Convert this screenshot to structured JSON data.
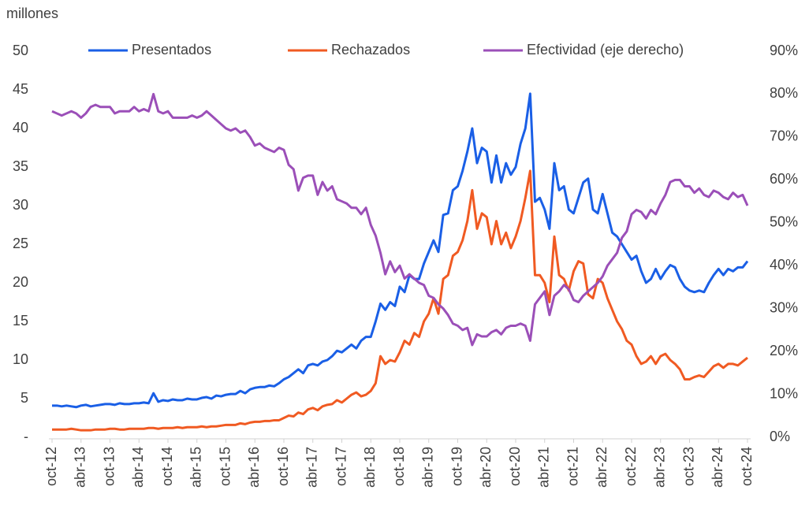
{
  "chart_data": {
    "type": "line",
    "y_label": "millones",
    "categories": [
      "oct-12",
      null,
      null,
      null,
      null,
      null,
      "abr-13",
      null,
      null,
      null,
      null,
      null,
      "oct-13",
      null,
      null,
      null,
      null,
      null,
      "abr-14",
      null,
      null,
      null,
      null,
      null,
      "oct-14",
      null,
      null,
      null,
      null,
      null,
      "abr-15",
      null,
      null,
      null,
      null,
      null,
      "oct-15",
      null,
      null,
      null,
      null,
      null,
      "abr-16",
      null,
      null,
      null,
      null,
      null,
      "oct-16",
      null,
      null,
      null,
      null,
      null,
      "abr-17",
      null,
      null,
      null,
      null,
      null,
      "oct-17",
      null,
      null,
      null,
      null,
      null,
      "abr-18",
      null,
      null,
      null,
      null,
      null,
      "oct-18",
      null,
      null,
      null,
      null,
      null,
      "abr-19",
      null,
      null,
      null,
      null,
      null,
      "oct-19",
      null,
      null,
      null,
      null,
      null,
      "abr-20",
      null,
      null,
      null,
      null,
      null,
      "oct-20",
      null,
      null,
      null,
      null,
      null,
      "abr-21",
      null,
      null,
      null,
      null,
      null,
      "oct-21",
      null,
      null,
      null,
      null,
      null,
      "abr-22",
      null,
      null,
      null,
      null,
      null,
      "oct-22",
      null,
      null,
      null,
      null,
      null,
      "abr-23",
      null,
      null,
      null,
      null,
      null,
      "oct-23",
      null,
      null,
      null,
      null,
      null,
      "abr-24",
      null,
      null,
      null,
      null,
      null,
      "oct-24"
    ],
    "series": [
      {
        "name": "Presentados",
        "color": "#1a5fe6",
        "values": [
          4.1,
          4.1,
          4.0,
          4.1,
          4.0,
          3.9,
          4.1,
          4.2,
          4.0,
          4.1,
          4.2,
          4.3,
          4.3,
          4.2,
          4.4,
          4.3,
          4.3,
          4.4,
          4.4,
          4.5,
          4.4,
          5.7,
          4.6,
          4.8,
          4.7,
          4.9,
          4.8,
          4.8,
          5.0,
          4.9,
          4.9,
          5.1,
          5.2,
          5.0,
          5.4,
          5.3,
          5.5,
          5.6,
          5.6,
          6.0,
          5.7,
          6.2,
          6.4,
          6.5,
          6.5,
          6.7,
          6.6,
          7.0,
          7.5,
          7.8,
          8.3,
          8.8,
          8.3,
          9.3,
          9.5,
          9.3,
          9.8,
          10.0,
          10.5,
          11.2,
          11.0,
          11.5,
          12.0,
          11.5,
          12.5,
          13.0,
          13.0,
          15.0,
          17.3,
          16.5,
          17.5,
          17.0,
          19.5,
          18.8,
          21.0,
          20.5,
          20.5,
          22.5,
          24.0,
          25.5,
          24.0,
          28.8,
          29.0,
          32.0,
          32.5,
          34.5,
          37.0,
          40.0,
          35.5,
          37.5,
          37.0,
          33.0,
          36.5,
          33.0,
          35.5,
          34.0,
          35.0,
          38.0,
          40.0,
          44.5,
          30.5,
          31.0,
          29.5,
          27.0,
          35.5,
          32.0,
          32.5,
          29.5,
          29.0,
          31.0,
          33.0,
          33.5,
          29.5,
          29.0,
          31.5,
          29.0,
          26.5,
          26.0,
          25.0,
          24.0,
          23.0,
          23.5,
          21.5,
          20.0,
          20.5,
          21.8,
          20.5,
          21.5,
          22.3,
          22.0,
          20.5,
          19.5,
          19.0,
          18.8,
          19.0,
          18.8,
          20.0,
          21.0,
          21.8,
          21.0,
          21.8,
          21.5,
          22.0,
          22.0,
          22.8
        ]
      },
      {
        "name": "Rechazados",
        "color": "#f05a22",
        "values": [
          1.0,
          1.0,
          1.0,
          1.0,
          1.1,
          1.0,
          0.9,
          0.9,
          0.9,
          1.0,
          1.0,
          1.0,
          1.1,
          1.1,
          1.0,
          1.0,
          1.1,
          1.1,
          1.1,
          1.1,
          1.2,
          1.2,
          1.1,
          1.2,
          1.2,
          1.2,
          1.3,
          1.2,
          1.3,
          1.3,
          1.3,
          1.4,
          1.3,
          1.4,
          1.4,
          1.5,
          1.6,
          1.6,
          1.6,
          1.8,
          1.7,
          1.9,
          2.0,
          2.0,
          2.1,
          2.1,
          2.2,
          2.2,
          2.5,
          2.8,
          2.7,
          3.2,
          3.0,
          3.6,
          3.8,
          3.5,
          4.0,
          4.2,
          4.3,
          4.8,
          4.5,
          5.0,
          5.5,
          5.8,
          5.3,
          5.5,
          6.0,
          7.0,
          10.5,
          9.5,
          10.0,
          9.8,
          11.0,
          12.5,
          12.0,
          13.5,
          13.0,
          15.0,
          16.0,
          18.0,
          16.0,
          20.5,
          21.0,
          23.5,
          24.0,
          25.5,
          28.0,
          32.0,
          27.0,
          29.0,
          28.5,
          25.0,
          28.0,
          25.0,
          26.5,
          24.5,
          26.0,
          28.0,
          31.0,
          34.5,
          21.0,
          21.0,
          20.0,
          17.5,
          26.0,
          21.0,
          20.5,
          19.0,
          21.5,
          22.8,
          22.5,
          18.5,
          18.0,
          20.5,
          20.0,
          18.0,
          16.5,
          15.0,
          14.0,
          12.5,
          12.0,
          10.5,
          9.5,
          9.8,
          10.5,
          9.5,
          10.5,
          10.8,
          10.0,
          9.5,
          8.8,
          7.5,
          7.5,
          7.8,
          8.0,
          7.8,
          8.5,
          9.2,
          9.5,
          9.0,
          9.5,
          9.5,
          9.3,
          9.8,
          10.3
        ]
      },
      {
        "name": "Efectividad (eje derecho)",
        "color": "#9b4fb8",
        "axis": "y2",
        "values": [
          76,
          75.5,
          75,
          75.5,
          76,
          75.5,
          74.5,
          75.5,
          77,
          77.5,
          77,
          77,
          77,
          75.5,
          76,
          76,
          76,
          77,
          76,
          76.5,
          76,
          80,
          76,
          75.5,
          76,
          74.5,
          74.5,
          74.5,
          74.5,
          75,
          74.5,
          75,
          76,
          75,
          74,
          73,
          72,
          71.5,
          72,
          71,
          71.5,
          70,
          68,
          68.5,
          67.5,
          67,
          66.5,
          67.5,
          67,
          63.5,
          62.5,
          57.5,
          60.5,
          61,
          61,
          56.5,
          59.5,
          57.5,
          58.5,
          55.5,
          55,
          54.5,
          53.5,
          53.5,
          52,
          53.5,
          49.5,
          47,
          43,
          38,
          41,
          38.5,
          40,
          37,
          38,
          37,
          36,
          35.5,
          33,
          32.5,
          31,
          30,
          28.5,
          26.5,
          26,
          25,
          25.5,
          21.5,
          24,
          23.5,
          23.5,
          24.5,
          25,
          24,
          25.5,
          26,
          26,
          26.5,
          26,
          22.5,
          31,
          32.5,
          34,
          28.5,
          33,
          34,
          35.5,
          34.5,
          32,
          31.5,
          33,
          34,
          35,
          36,
          37.5,
          40,
          41.5,
          43,
          46.5,
          48,
          52,
          53,
          52.5,
          51,
          53,
          52,
          54.5,
          56.5,
          59.5,
          60,
          60,
          58.5,
          58.5,
          57,
          58,
          56.5,
          56,
          57.5,
          57,
          56,
          55.5,
          57,
          56,
          56.5,
          54
        ]
      }
    ],
    "ylim": [
      0,
      50
    ],
    "yticks": [
      {
        "value": 0,
        "label": "-"
      },
      5,
      10,
      15,
      20,
      25,
      30,
      35,
      40,
      45,
      50
    ],
    "y2lim": [
      0,
      90
    ],
    "y2ticks": [
      {
        "value": 0,
        "label": "0%"
      },
      {
        "value": 10,
        "label": "10%"
      },
      {
        "value": 20,
        "label": "20%"
      },
      {
        "value": 30,
        "label": "30%"
      },
      {
        "value": 40,
        "label": "40%"
      },
      {
        "value": 50,
        "label": "50%"
      },
      {
        "value": 60,
        "label": "60%"
      },
      {
        "value": 70,
        "label": "70%"
      },
      {
        "value": 80,
        "label": "80%"
      },
      {
        "value": 90,
        "label": "90%"
      }
    ],
    "legend": "top"
  }
}
